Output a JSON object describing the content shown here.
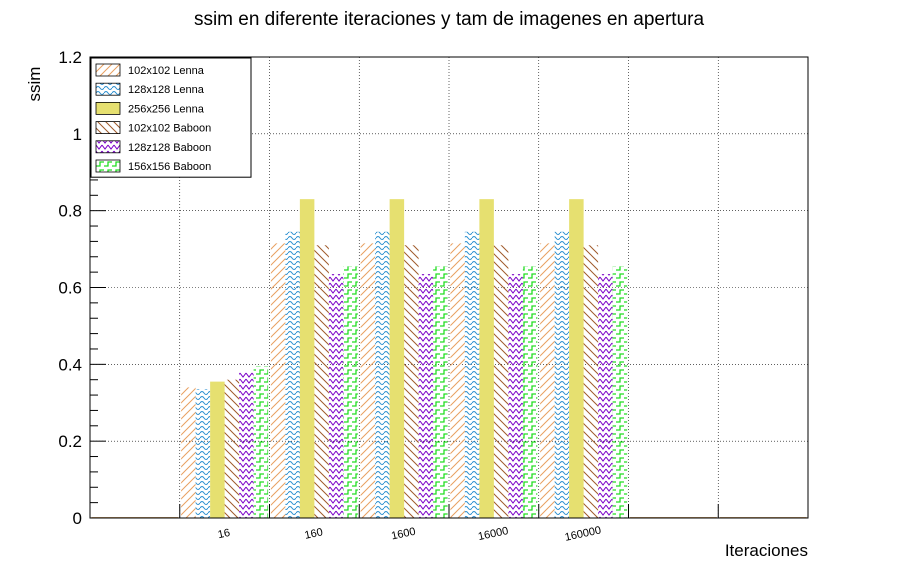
{
  "chart_data": {
    "type": "bar",
    "title": "ssim en diferente iteraciones y tam de imagenes en apertura",
    "xlabel": "Iteraciones",
    "ylabel": "ssim",
    "ylim": [
      0,
      1.2
    ],
    "yticks": [
      "0",
      "0.2",
      "0.4",
      "0.6",
      "0.8",
      "1",
      "1.2"
    ],
    "ytick_values": [
      0,
      0.2,
      0.4,
      0.6,
      0.8,
      1.0,
      1.2
    ],
    "categories": [
      "16",
      "160",
      "1600",
      "16000",
      "160000"
    ],
    "grid": true,
    "legend_position": "top-left",
    "series": [
      {
        "name": "102x102 Lenna",
        "color": "#e8a060",
        "pattern": "diag-right",
        "values": [
          0.34,
          0.715,
          0.715,
          0.715,
          0.715
        ]
      },
      {
        "name": "128x128 Lenna",
        "color": "#2a8fd0",
        "pattern": "wave",
        "values": [
          0.335,
          0.745,
          0.745,
          0.745,
          0.745
        ]
      },
      {
        "name": "256x256 Lenna",
        "color": "#e6e070",
        "pattern": "solid",
        "values": [
          0.355,
          0.83,
          0.83,
          0.83,
          0.83
        ]
      },
      {
        "name": "102x102 Baboon",
        "color": "#a05a2a",
        "pattern": "diag-left",
        "values": [
          0.36,
          0.71,
          0.71,
          0.71,
          0.71
        ]
      },
      {
        "name": "128z128 Baboon",
        "color": "#7a00c8",
        "pattern": "zigzag",
        "values": [
          0.38,
          0.635,
          0.635,
          0.635,
          0.635
        ]
      },
      {
        "name": "156x156 Baboon",
        "color": "#22dd22",
        "pattern": "steps",
        "values": [
          0.395,
          0.655,
          0.655,
          0.655,
          0.655
        ]
      }
    ]
  }
}
